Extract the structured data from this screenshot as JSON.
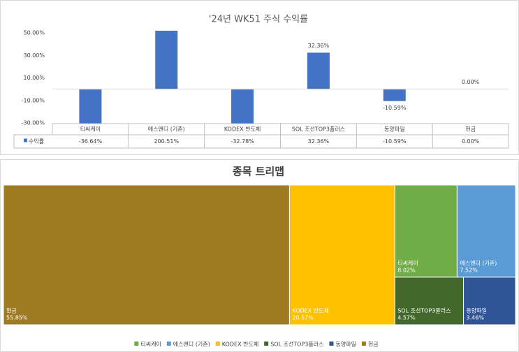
{
  "chart_data": [
    {
      "type": "bar",
      "title": "'24년 WK51 주식 수익률",
      "categories": [
        "티씨케이",
        "에스앤디 (기존)",
        "KODEX 반도체",
        "SOL 조선TOP3플러스",
        "동양파일",
        "현금"
      ],
      "series": [
        {
          "name": "수익률",
          "color": "#4472c4",
          "values": [
            -36.64,
            200.51,
            -32.78,
            32.36,
            -10.59,
            0
          ],
          "value_labels": [
            "-36.64%",
            "200.51%",
            "-32.78%",
            "32.36%",
            "-10.59%",
            "0.00%"
          ]
        }
      ],
      "ylim": [
        -30,
        50
      ],
      "yticks": [
        {
          "value": 50,
          "label": "50.00%"
        },
        {
          "value": 30,
          "label": "30.00%"
        },
        {
          "value": 10,
          "label": "10.00%"
        },
        {
          "value": -10,
          "label": "-10.00%"
        },
        {
          "value": -30,
          "label": "-30.00%"
        }
      ],
      "data_table": true
    },
    {
      "type": "treemap",
      "title": "종목 트리맵",
      "categories": [
        "티씨케이",
        "에스앤디 (기존)",
        "KODEX 반도체",
        "SOL 조선TOP3플러스",
        "동양파일",
        "현금"
      ],
      "values": [
        8.02,
        7.52,
        20.57,
        4.57,
        3.46,
        55.85
      ],
      "value_labels": [
        "8.02%",
        "7.52%",
        "20.57%",
        "4.57%",
        "3.46%",
        "55.85%"
      ],
      "colors": [
        "#70ad47",
        "#5b9bd5",
        "#ffc000",
        "#43682b",
        "#2f5597",
        "#9e7a22"
      ]
    }
  ]
}
